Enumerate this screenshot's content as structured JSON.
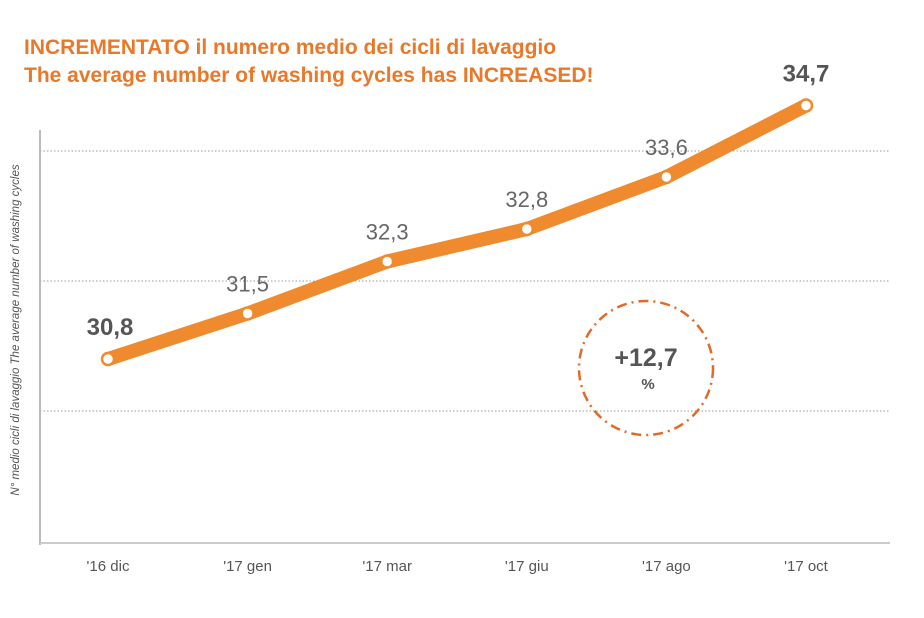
{
  "chart_data": {
    "type": "line",
    "title": "INCREMENTATO il numero medio dei cicli di lavaggio",
    "subtitle": "The average number of washing cycles has INCREASED!",
    "xlabel": "",
    "ylabel": "N° medio cicli di lavaggio   The average number of washing cycles",
    "categories": [
      "'16 dic",
      "'17 gen",
      "'17 mar",
      "'17 giu",
      "'17 ago",
      "'17 oct"
    ],
    "series": [
      {
        "name": "Average washing cycles",
        "values": [
          30.8,
          31.5,
          32.3,
          32.8,
          33.6,
          34.7
        ]
      }
    ],
    "data_labels": [
      "30,8",
      "31,5",
      "32,3",
      "32,8",
      "33,6",
      "34,7"
    ],
    "ylim": [
      28,
      35.5
    ],
    "gridlines": [
      30,
      32,
      34
    ],
    "grid": true,
    "annotation": {
      "value": "+12,7",
      "unit": "%"
    },
    "colors": {
      "line": "#ef8a2e",
      "title": "#e8782a",
      "annotation_circle": "#e06a28",
      "text": "#666666"
    }
  }
}
